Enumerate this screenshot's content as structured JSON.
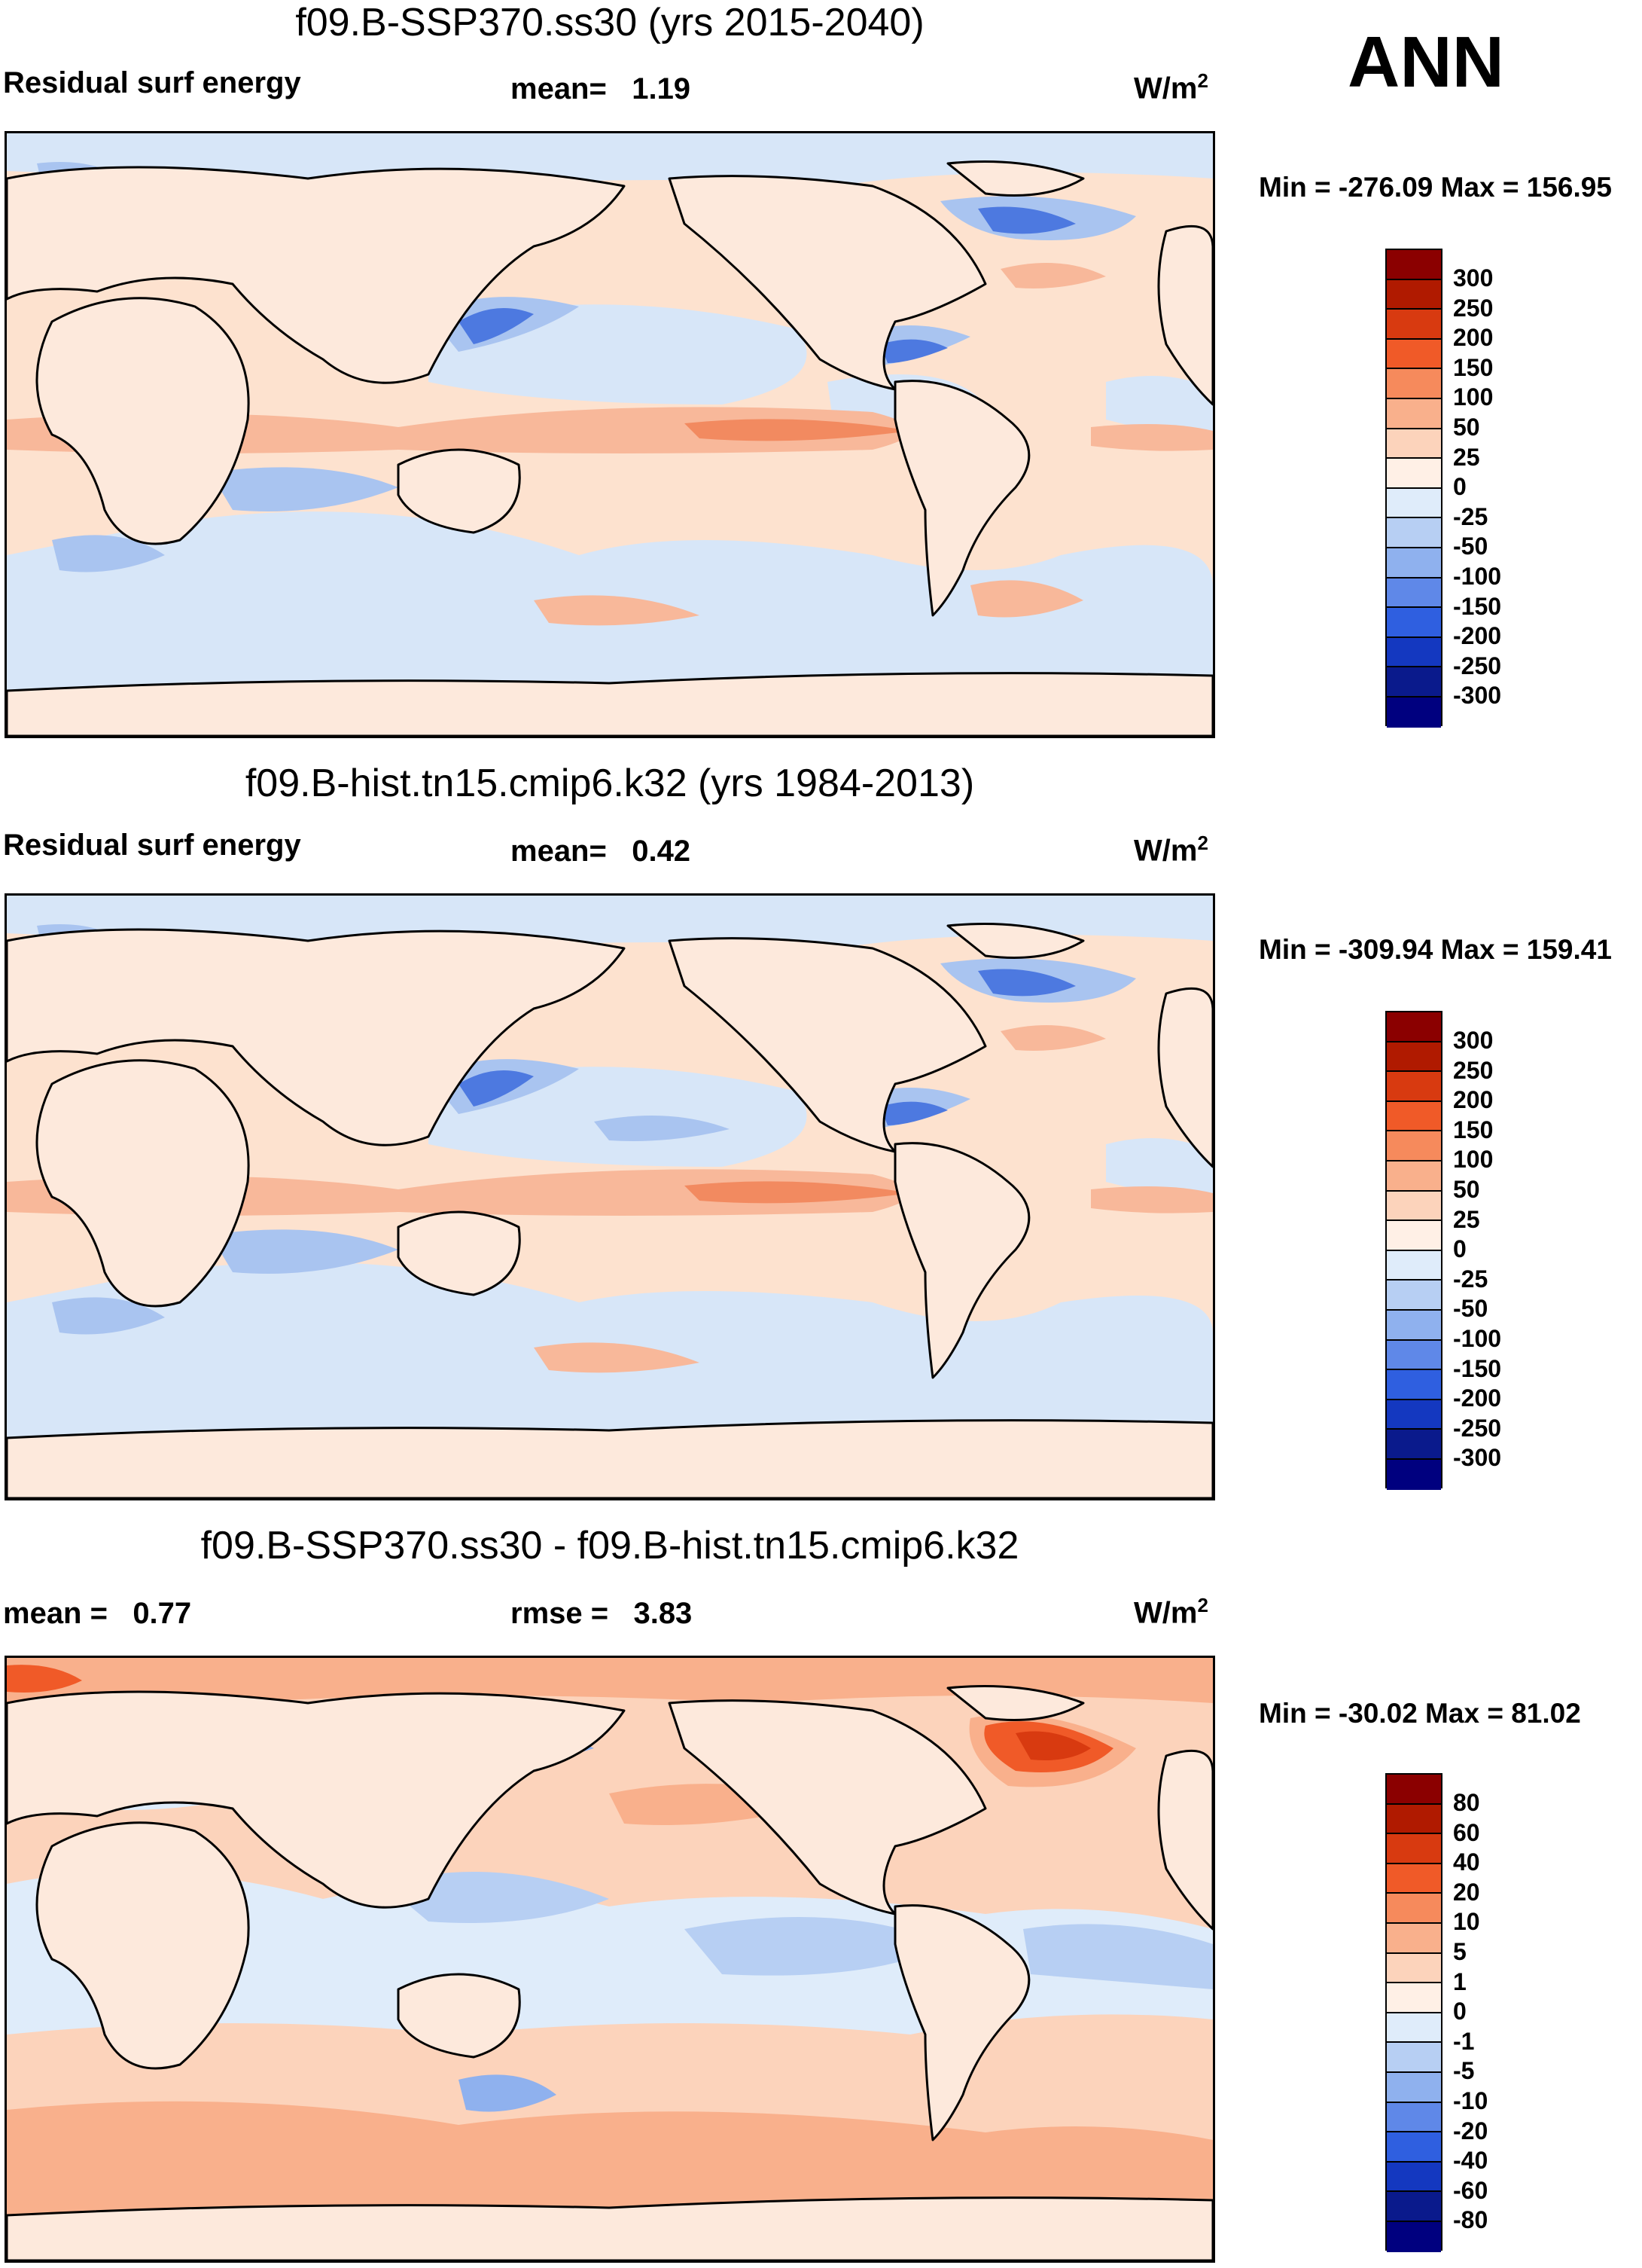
{
  "season": "ANN",
  "units_base": "W/m",
  "units_exp": "2",
  "colors": {
    "ocean_pos": "#fde2cf",
    "land": "#fde9dc",
    "coast": "#000000"
  },
  "panels": [
    {
      "title": "f09.B-SSP370.ss30 (yrs 2015-2040)",
      "left_label": "Residual surf energy",
      "mid_label": "mean=",
      "mid_value": "1.19",
      "right_label": "",
      "right_value": "",
      "minmax": "Min = -276.09 Max = 156.95",
      "colorbar": {
        "ticks": [
          "300",
          "250",
          "200",
          "150",
          "100",
          "50",
          "25",
          "0",
          "-25",
          "-50",
          "-100",
          "-150",
          "-200",
          "-250",
          "-300"
        ],
        "colors": [
          "#8b0000",
          "#b01a00",
          "#d83a10",
          "#f05a28",
          "#f68a5c",
          "#f9b08c",
          "#fcd3bb",
          "#fff0e6",
          "#dfecfa",
          "#b7cff3",
          "#8fb1ee",
          "#5f88e8",
          "#2f5fe0",
          "#1438c0",
          "#0a1a8c",
          "#00007f"
        ]
      }
    },
    {
      "title": "f09.B-hist.tn15.cmip6.k32 (yrs 1984-2013)",
      "left_label": "Residual surf energy",
      "mid_label": "mean=",
      "mid_value": "0.42",
      "right_label": "",
      "right_value": "",
      "minmax": "Min = -309.94 Max = 159.41",
      "colorbar": {
        "ticks": [
          "300",
          "250",
          "200",
          "150",
          "100",
          "50",
          "25",
          "0",
          "-25",
          "-50",
          "-100",
          "-150",
          "-200",
          "-250",
          "-300"
        ],
        "colors": [
          "#8b0000",
          "#b01a00",
          "#d83a10",
          "#f05a28",
          "#f68a5c",
          "#f9b08c",
          "#fcd3bb",
          "#fff0e6",
          "#dfecfa",
          "#b7cff3",
          "#8fb1ee",
          "#5f88e8",
          "#2f5fe0",
          "#1438c0",
          "#0a1a8c",
          "#00007f"
        ]
      }
    },
    {
      "title": "f09.B-SSP370.ss30 - f09.B-hist.tn15.cmip6.k32",
      "left_label": "mean =",
      "left_value": "0.77",
      "mid_label": "rmse =",
      "mid_value": "3.83",
      "minmax": "Min = -30.02 Max =  81.02",
      "colorbar": {
        "ticks": [
          "80",
          "60",
          "40",
          "20",
          "10",
          "5",
          "1",
          "0",
          "-1",
          "-5",
          "-10",
          "-20",
          "-40",
          "-60",
          "-80"
        ],
        "colors": [
          "#8b0000",
          "#b01a00",
          "#d83a10",
          "#f05a28",
          "#f68a5c",
          "#f9b08c",
          "#fcd3bb",
          "#fff0e6",
          "#dfecfa",
          "#b7cff3",
          "#8fb1ee",
          "#5f88e8",
          "#2f5fe0",
          "#1438c0",
          "#0a1a8c",
          "#00007f"
        ]
      }
    }
  ]
}
